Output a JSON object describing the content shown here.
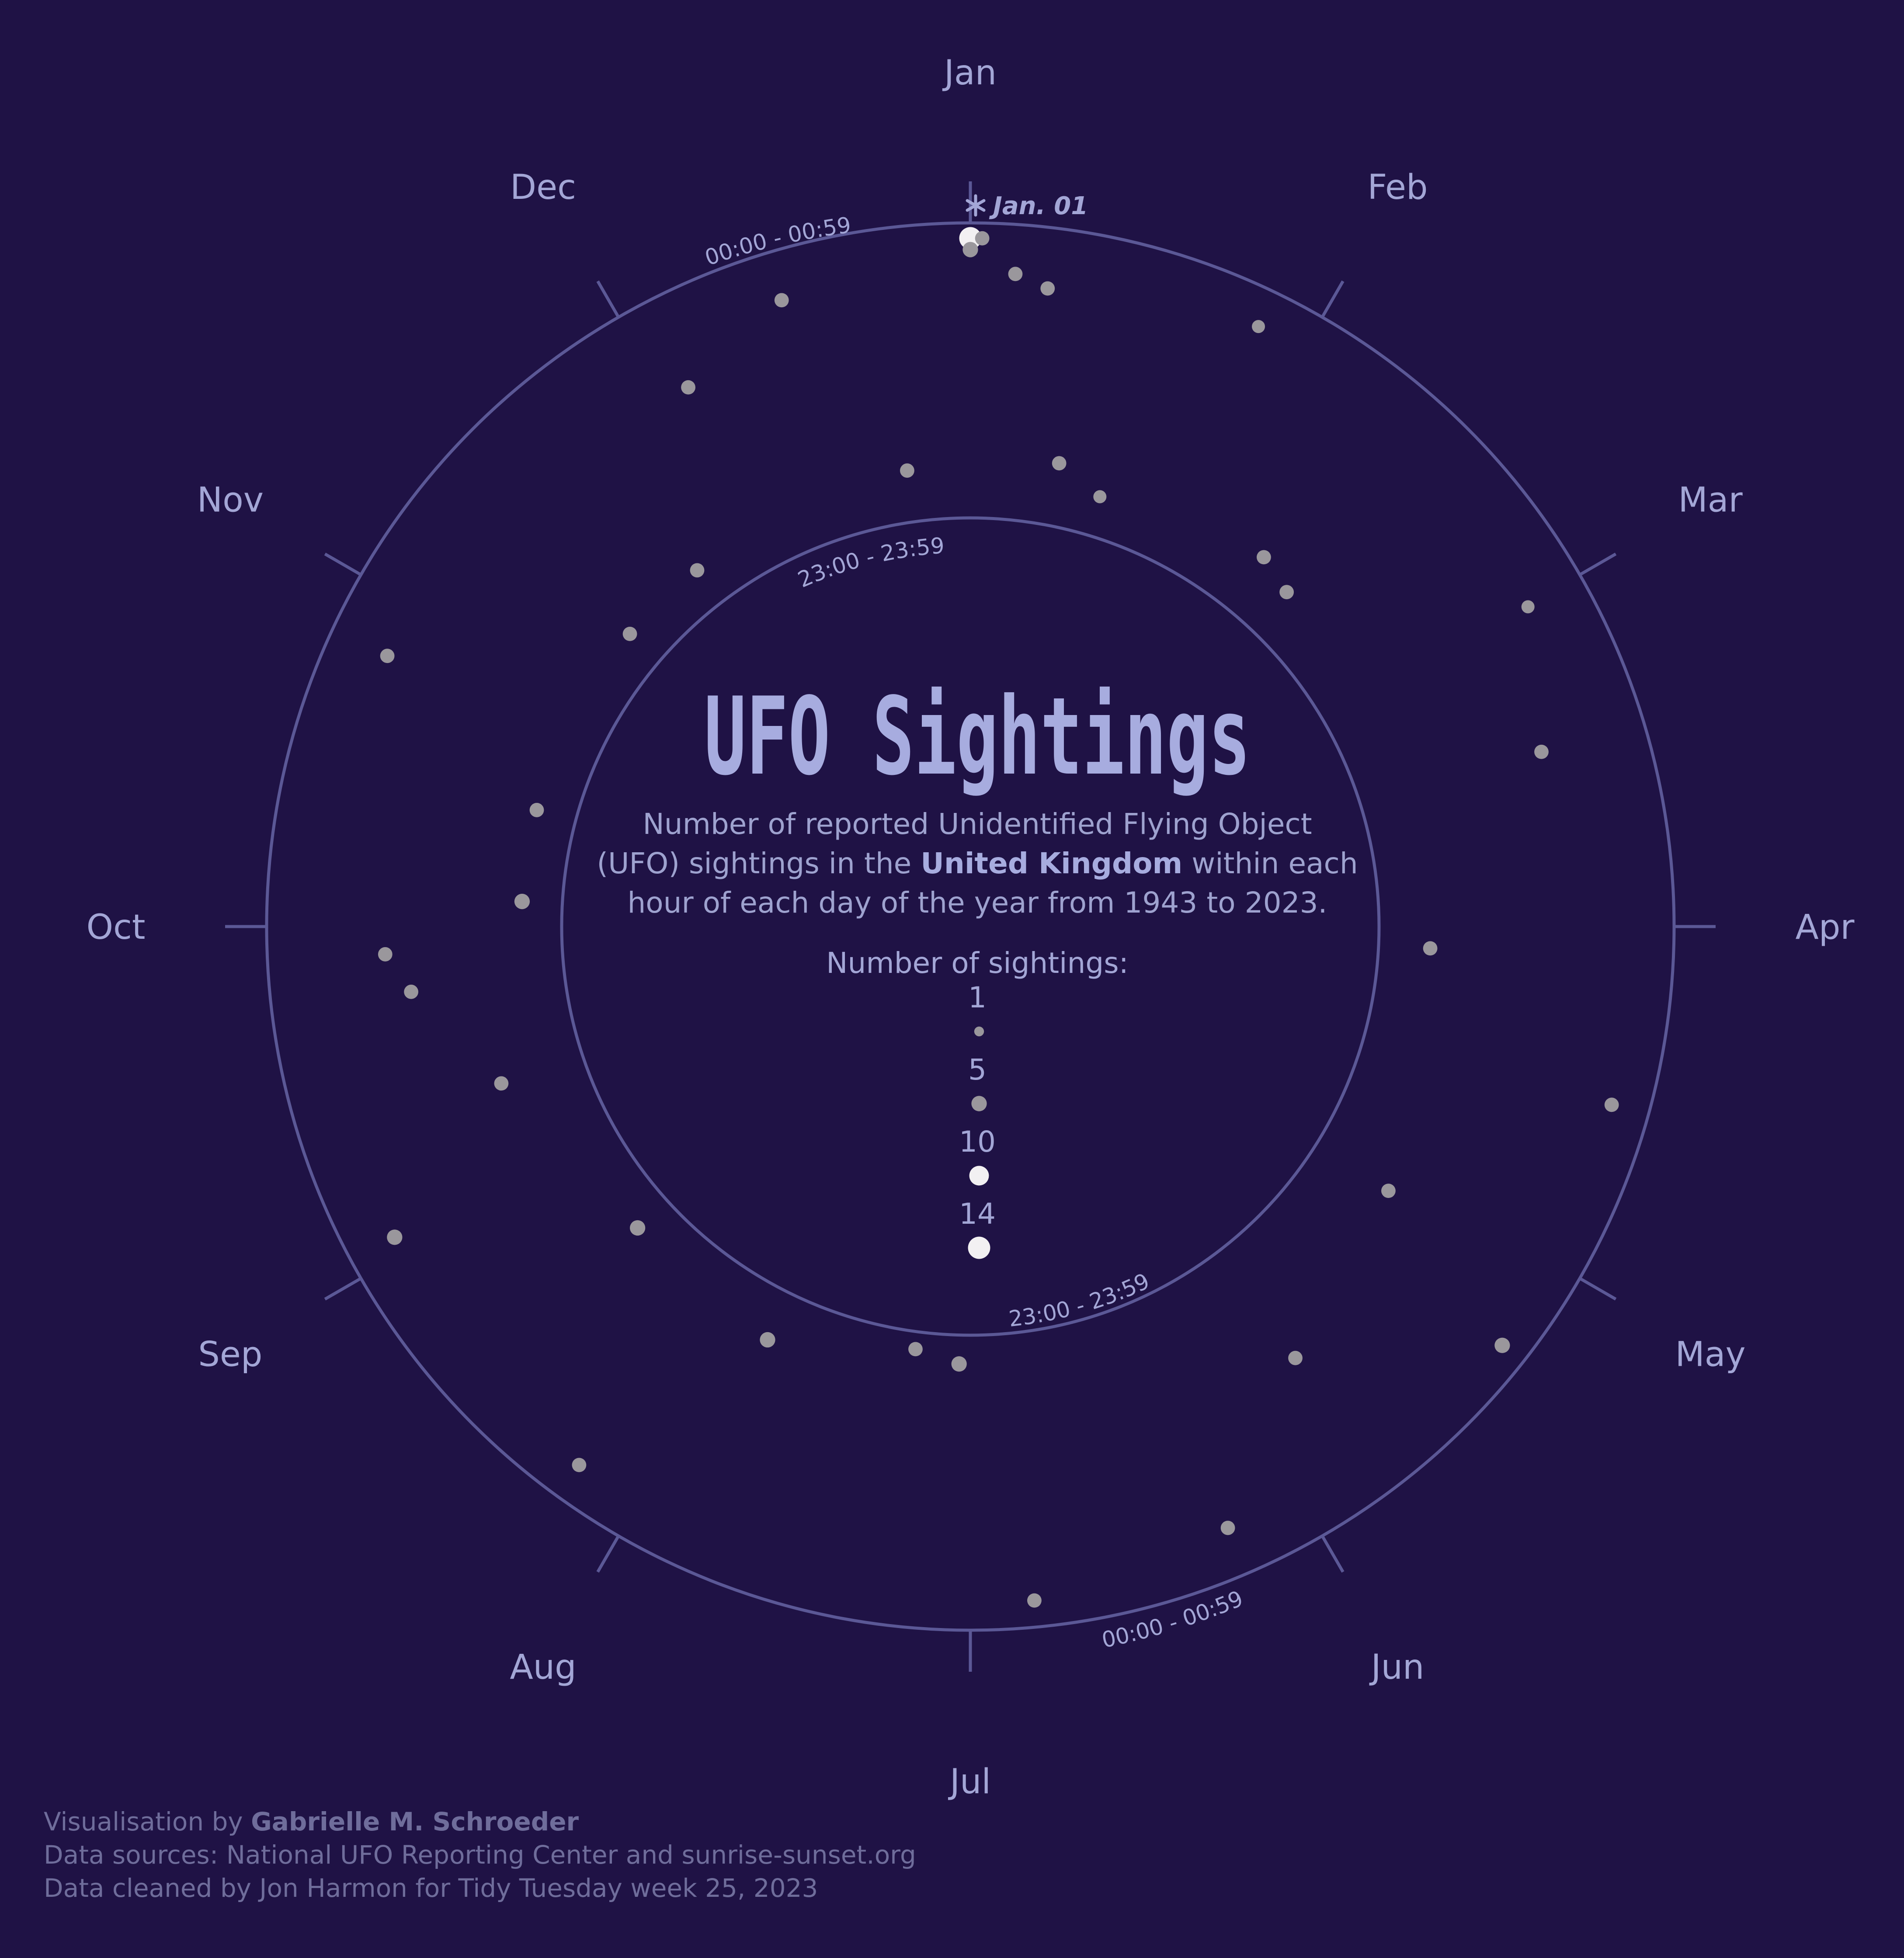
{
  "chart_data": {
    "type": "scatter",
    "title": "UFO Sightings",
    "subtitle": {
      "before": "Number of reported Unidentified Flying Object",
      "line2_before": "(UFO) sightings in the ",
      "line2_bold": "United Kingdom",
      "line2_after": " within each",
      "line3": "hour of each day of the year from 1943 to 2023."
    },
    "angular_axis": {
      "variable": "day of year",
      "months": [
        "Jan",
        "Feb",
        "Mar",
        "Apr",
        "May",
        "Jun",
        "Jul",
        "Aug",
        "Sep",
        "Oct",
        "Nov",
        "Dec"
      ]
    },
    "radial_axis": {
      "variable": "hour of day",
      "outer_label": "00:00 - 00:59",
      "inner_label": "23:00 - 23:59"
    },
    "size_legend": {
      "title": "Number of sightings:",
      "values": [
        1,
        5,
        10,
        14
      ]
    },
    "highlight": {
      "day": 1,
      "hour": 0,
      "count": 14,
      "label": "Jan. 01"
    },
    "points": [
      {
        "day": 1,
        "hour": 0,
        "count": 14
      },
      {
        "day": 1,
        "hour": 1,
        "count": 5
      },
      {
        "day": 2,
        "hour": 0,
        "count": 4
      },
      {
        "day": 5,
        "hour": 3,
        "count": 4
      },
      {
        "day": 8,
        "hour": 4,
        "count": 4
      },
      {
        "day": 12,
        "hour": 19,
        "count": 4
      },
      {
        "day": 18,
        "hour": 21,
        "count": 3
      },
      {
        "day": 27,
        "hour": 2,
        "count": 3
      },
      {
        "day": 40,
        "hour": 19,
        "count": 4
      },
      {
        "day": 45,
        "hour": 20,
        "count": 4
      },
      {
        "day": 62,
        "hour": 4,
        "count": 3
      },
      {
        "day": 75,
        "hour": 8,
        "count": 4
      },
      {
        "day": 95,
        "hour": 20,
        "count": 4
      },
      {
        "day": 108,
        "hour": 2,
        "count": 4
      },
      {
        "day": 125,
        "hour": 17,
        "count": 4
      },
      {
        "day": 131,
        "hour": 1,
        "count": 5
      },
      {
        "day": 146,
        "hour": 13,
        "count": 4
      },
      {
        "day": 160,
        "hour": 3,
        "count": 4
      },
      {
        "day": 178,
        "hour": 1,
        "count": 4
      },
      {
        "day": 185,
        "hour": 22,
        "count": 5
      },
      {
        "day": 191,
        "hour": 23,
        "count": 4
      },
      {
        "day": 210,
        "hour": 20,
        "count": 5
      },
      {
        "day": 220,
        "hour": 2,
        "count": 4
      },
      {
        "day": 232,
        "hour": 21,
        "count": 5
      },
      {
        "day": 246,
        "hour": 3,
        "count": 5
      },
      {
        "day": 256,
        "hour": 17,
        "count": 4
      },
      {
        "day": 268,
        "hour": 11,
        "count": 4
      },
      {
        "day": 272,
        "hour": 9,
        "count": 4
      },
      {
        "day": 278,
        "hour": 21,
        "count": 5
      },
      {
        "day": 290,
        "hour": 21,
        "count": 4
      },
      {
        "day": 300,
        "hour": 4,
        "count": 4
      },
      {
        "day": 316,
        "hour": 21,
        "count": 4
      },
      {
        "day": 328,
        "hour": 21,
        "count": 4
      },
      {
        "day": 338,
        "hour": 7,
        "count": 4
      },
      {
        "day": 349,
        "hour": 3,
        "count": 4
      },
      {
        "day": 358,
        "hour": 20,
        "count": 4
      }
    ]
  },
  "credits": {
    "line1_prefix": "Visualisation by ",
    "line1_author": "Gabrielle M. Schroeder",
    "line2": "Data sources: National UFO Reporting Center and sunrise-sunset.org",
    "line3": "Data cleaned by Jon Harmon for Tidy Tuesday week 25, 2023"
  },
  "colors": {
    "background": "#1f1245",
    "ring": "#5b5896",
    "point": "#9a979c",
    "point_large": "#f2f0f2",
    "text": "#a3a6d6",
    "title": "#a7acdf"
  }
}
